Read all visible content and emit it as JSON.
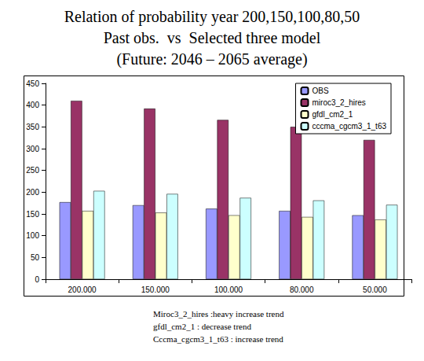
{
  "chart_data": {
    "type": "bar",
    "title": "Relation of probability year 200,150,100,80,50",
    "subtitle": [
      "Past obs.  vs  Selected three model",
      "(Future: 2046 – 2065 average)"
    ],
    "annotations": [
      "Miroc3_2_hires :heavy increase trend",
      "gfdl_cm2_1 : decrease trend",
      "Cccma_cgcm3_1_t63 : increase trend"
    ],
    "categories": [
      "200.000",
      "150.000",
      "100.000",
      "80.000",
      "50.000"
    ],
    "series": [
      {
        "name": "OBS",
        "color": "#9999ff",
        "values": [
          177,
          170,
          162,
          157,
          147
        ]
      },
      {
        "name": "miroc3_2_hires",
        "color": "#993366",
        "values": [
          410,
          392,
          366,
          350,
          320
        ]
      },
      {
        "name": "gfdl_cm2_1",
        "color": "#ffffcc",
        "values": [
          157,
          153,
          147,
          143,
          137
        ]
      },
      {
        "name": "cccma_cgcm3_1_t63",
        "color": "#ccffff",
        "values": [
          203,
          196,
          187,
          181,
          171
        ]
      }
    ],
    "ylim": [
      0,
      450
    ],
    "yticks": [
      0,
      50,
      100,
      150,
      200,
      250,
      300,
      350,
      400,
      450
    ],
    "grid": false,
    "legend": "top-right"
  }
}
